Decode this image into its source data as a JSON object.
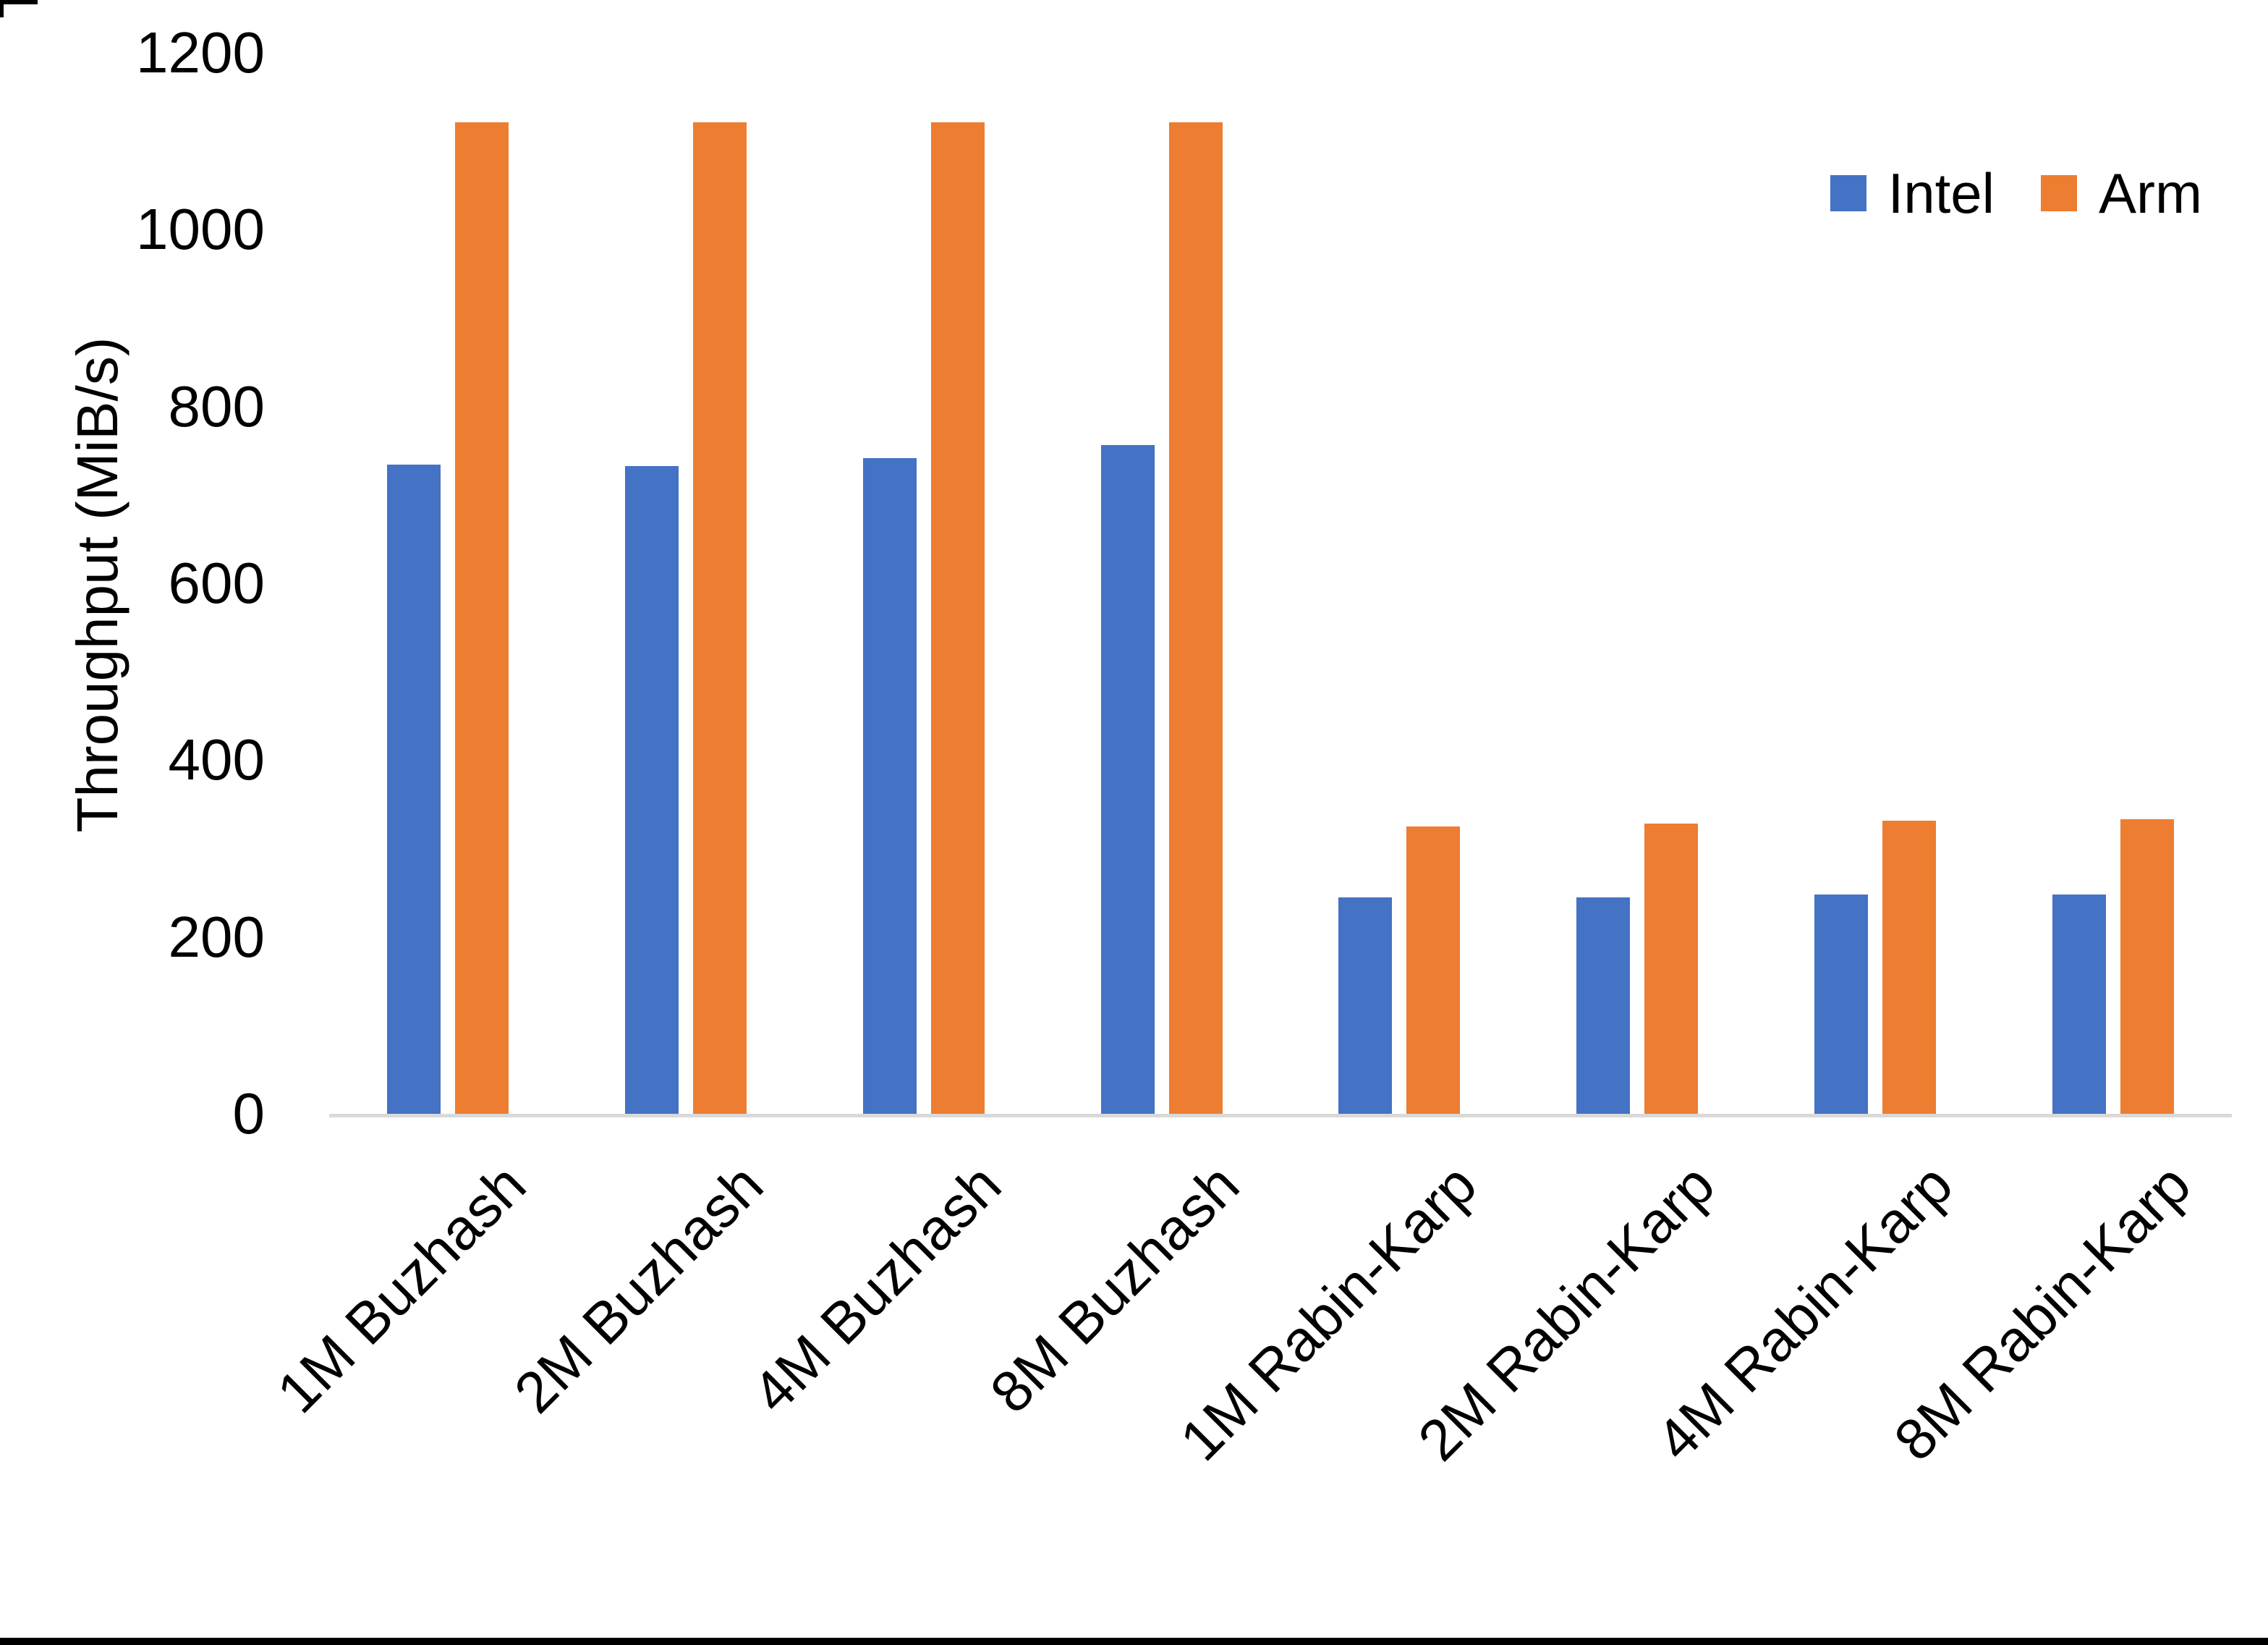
{
  "chart_data": {
    "type": "bar",
    "categories": [
      "1M Buzhash",
      "2M Buzhash",
      "4M Buzhash",
      "8M Buzhash",
      "1M Rabin-Karp",
      "2M Rabin-Karp",
      "4M Rabin-Karp",
      "8M Rabin-Karp"
    ],
    "series": [
      {
        "name": "Intel",
        "color": "#4472C4",
        "values": [
          736,
          734,
          743,
          758,
          246,
          246,
          250,
          250
        ]
      },
      {
        "name": "Arm",
        "color": "#ED7D31",
        "values": [
          1123,
          1123,
          1123,
          1123,
          327,
          330,
          333,
          335
        ]
      }
    ],
    "title": "",
    "xlabel": "",
    "ylabel": "Throughput (MiB/s)",
    "ylim": [
      0,
      1200
    ],
    "ytick_step": 200,
    "ytick_labels": [
      "0",
      "200",
      "400",
      "600",
      "800",
      "1000",
      "1200"
    ],
    "grid": false,
    "legend_position": "top-right",
    "axis_line_color": "#D9D9D9"
  }
}
